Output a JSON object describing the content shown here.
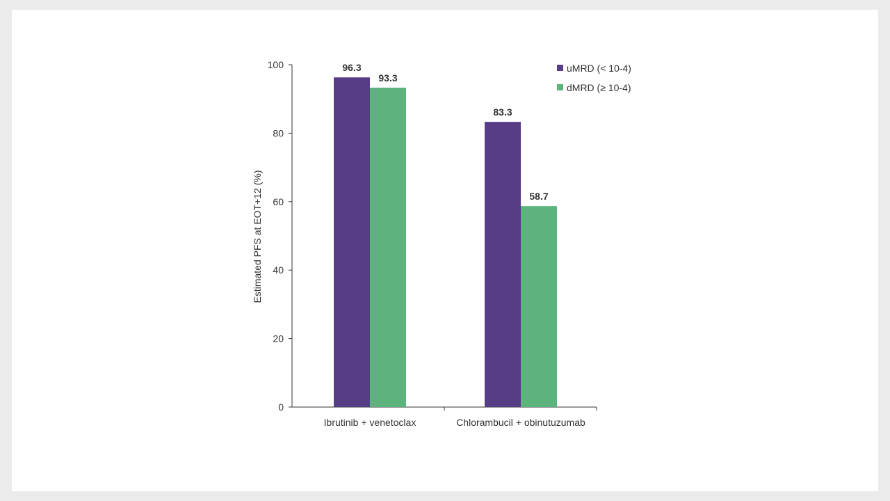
{
  "chart_data": {
    "type": "bar",
    "categories": [
      "Ibrutinib + venetoclax",
      "Chlorambucil + obinutuzumab"
    ],
    "series": [
      {
        "name": "uMRD (< 10-4)",
        "values": [
          96.3,
          83.3
        ],
        "color": "#563d86"
      },
      {
        "name": "dMRD (≥ 10-4)",
        "values": [
          93.3,
          58.7
        ],
        "color": "#5cb37c"
      }
    ],
    "ylabel": "Estimated PFS at EOT+12 (%)",
    "xlabel": "",
    "ylim": [
      0,
      100
    ],
    "yticks": [
      0,
      20,
      40,
      60,
      80,
      100
    ],
    "legend": "top-right",
    "grid": false
  }
}
